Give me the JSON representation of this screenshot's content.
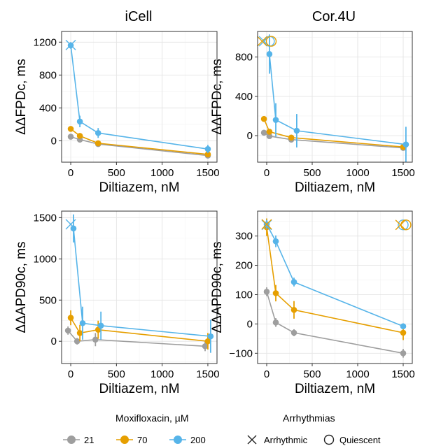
{
  "colors": {
    "21": "#9e9e9e",
    "70": "#e69f00",
    "200": "#56b4e9"
  },
  "legend": {
    "moxi_title": "Moxifloxacin, µM",
    "moxi_items": [
      "21",
      "70",
      "200"
    ],
    "arr_title": "Arrhythmias",
    "arr_items": [
      "Arrhythmic",
      "Quiescent"
    ]
  },
  "chart_data": [
    {
      "type": "line",
      "title": "iCell",
      "xlabel": "Diltiazem, nM",
      "ylabel": "ΔΔFPDc, ms",
      "xlim": [
        -100,
        1600
      ],
      "ylim": [
        -260,
        1330
      ],
      "xticks": [
        0,
        500,
        1000,
        1500
      ],
      "yticks": [
        0,
        400,
        800,
        1200
      ],
      "grid": true,
      "series": [
        {
          "name": "21",
          "x": [
            0,
            100,
            300,
            1500
          ],
          "y": [
            50,
            15,
            -40,
            -180
          ],
          "err": [
            10,
            10,
            15,
            15
          ]
        },
        {
          "name": "70",
          "x": [
            0,
            100,
            300,
            1500
          ],
          "y": [
            145,
            60,
            -30,
            -165
          ],
          "err": [
            20,
            15,
            20,
            20
          ]
        },
        {
          "name": "200",
          "x": [
            0,
            100,
            300,
            1500
          ],
          "y": [
            1160,
            235,
            95,
            -100
          ],
          "err": [
            40,
            70,
            60,
            50
          ]
        }
      ],
      "markers": [
        {
          "x": 0,
          "y": 1165,
          "symbol": "x",
          "series": "200"
        }
      ]
    },
    {
      "type": "line",
      "title": "Cor.4U",
      "xlabel": "Diltiazem, nM",
      "ylabel": "ΔΔFPDc, ms",
      "xlim": [
        -100,
        1600
      ],
      "ylim": [
        -270,
        1060
      ],
      "xticks": [
        0,
        500,
        1000,
        1500
      ],
      "yticks": [
        0,
        400,
        800
      ],
      "grid": true,
      "series": [
        {
          "name": "21",
          "x": [
            -30,
            30,
            270,
            1500
          ],
          "y": [
            30,
            -5,
            -40,
            -125
          ],
          "err": [
            10,
            15,
            20,
            20
          ]
        },
        {
          "name": "70",
          "x": [
            -30,
            30,
            270,
            1500
          ],
          "y": [
            170,
            40,
            -20,
            -115
          ],
          "err": [
            15,
            20,
            20,
            20
          ]
        },
        {
          "name": "200",
          "x": [
            30,
            100,
            330,
            1530
          ],
          "y": [
            830,
            160,
            50,
            -90
          ],
          "err": [
            200,
            170,
            170,
            180
          ]
        }
      ],
      "markers": [
        {
          "x": -30,
          "y": 960,
          "symbol": "x",
          "series": "200"
        },
        {
          "x": 30,
          "y": 960,
          "symbol": "o",
          "series": "200"
        },
        {
          "x": -50,
          "y": 960,
          "symbol": "x",
          "series": "70"
        },
        {
          "x": 50,
          "y": 960,
          "symbol": "o",
          "series": "70"
        }
      ]
    },
    {
      "type": "line",
      "xlabel": "Diltiazem, nM",
      "ylabel": "ΔΔAPD90c, ms",
      "xlim": [
        -100,
        1600
      ],
      "ylim": [
        -270,
        1580
      ],
      "xticks": [
        0,
        500,
        1000,
        1500
      ],
      "yticks": [
        0,
        500,
        1000,
        1500
      ],
      "grid": true,
      "series": [
        {
          "name": "21",
          "x": [
            -30,
            70,
            270,
            1470
          ],
          "y": [
            130,
            0,
            20,
            -60
          ],
          "err": [
            50,
            40,
            80,
            60
          ]
        },
        {
          "name": "70",
          "x": [
            0,
            100,
            300,
            1500
          ],
          "y": [
            285,
            100,
            140,
            0
          ],
          "err": [
            90,
            100,
            110,
            100
          ]
        },
        {
          "name": "200",
          "x": [
            30,
            130,
            330,
            1530
          ],
          "y": [
            1370,
            220,
            190,
            60
          ],
          "err": [
            170,
            200,
            170,
            200
          ]
        }
      ],
      "markers": [
        {
          "x": 0,
          "y": 1420,
          "symbol": "x",
          "series": "200"
        }
      ]
    },
    {
      "type": "line",
      "xlabel": "Diltiazem, nM",
      "ylabel": "ΔΔAPD90c, ms",
      "xlim": [
        -100,
        1600
      ],
      "ylim": [
        -135,
        385
      ],
      "xticks": [
        0,
        500,
        1000,
        1500
      ],
      "yticks": [
        -100,
        0,
        100,
        200,
        300
      ],
      "grid": true,
      "series": [
        {
          "name": "21",
          "x": [
            0,
            100,
            300,
            1500
          ],
          "y": [
            110,
            5,
            -30,
            -100
          ],
          "err": [
            15,
            15,
            12,
            15
          ]
        },
        {
          "name": "70",
          "x": [
            0,
            100,
            300,
            1500
          ],
          "y": [
            330,
            105,
            48,
            -30
          ],
          "err": [
            30,
            28,
            30,
            25
          ]
        },
        {
          "name": "200",
          "x": [
            0,
            100,
            300,
            1500
          ],
          "y": [
            340,
            282,
            143,
            -8
          ],
          "err": [
            15,
            20,
            15,
            10
          ]
        }
      ],
      "markers": [
        {
          "x": 0,
          "y": 338,
          "symbol": "x",
          "series": "200"
        },
        {
          "x": 0,
          "y": 340,
          "symbol": "x",
          "series": "70"
        },
        {
          "x": 1500,
          "y": 338,
          "symbol": "o",
          "series": "200"
        },
        {
          "x": 1530,
          "y": 338,
          "symbol": "o",
          "series": "70"
        },
        {
          "x": 1470,
          "y": 338,
          "symbol": "x",
          "series": "70"
        }
      ]
    }
  ]
}
